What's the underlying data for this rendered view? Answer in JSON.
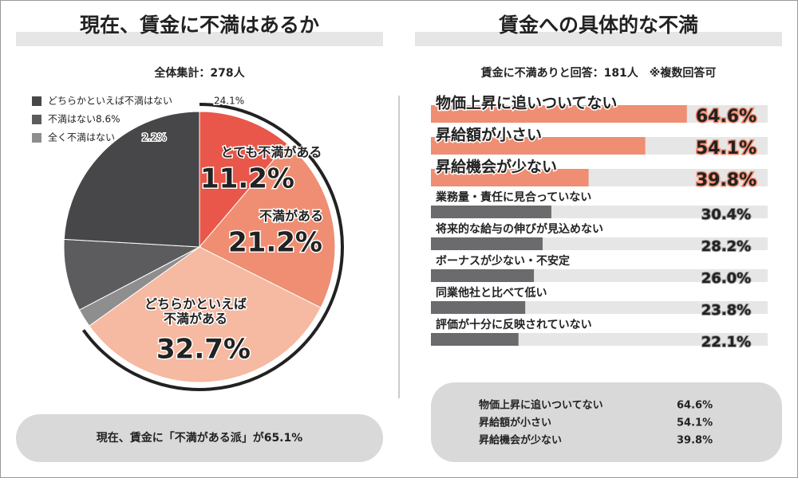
{
  "chart_data": [
    {
      "type": "pie",
      "title": "現在、賃金に不満はあるか",
      "subtitle": "全体集計：278人",
      "categories": [
        "とても不満がある",
        "不満がある",
        "どちらかといえば\n不満がある",
        "全く不満はない",
        "不満はない",
        "どちらかといえば不満はない"
      ],
      "values": [
        11.2,
        21.2,
        32.7,
        2.2,
        8.6,
        24.1
      ],
      "value_labels": [
        "11.2%",
        "21.2%",
        "32.7%",
        "2.2%",
        "8.6%",
        "24.1%"
      ],
      "colors": [
        "#e8574a",
        "#ef8e72",
        "#f6b9a1",
        "#8e8e8e",
        "#5c5c5e",
        "#474749"
      ],
      "annotation": "現在、賃金に「不満がある派」が65.1%"
    },
    {
      "type": "hbar",
      "title": "賃金への具体的な不満",
      "subtitle": "賃金に不満ありと回答：181人　※複数回答可",
      "categories": [
        "物価上昇に追いついてない",
        "昇給額が小さい",
        "昇給機会が少ない",
        "業務量・責任に見合っていない",
        "将来的な給与の伸びが見込めない",
        "ボーナスが少ない・不安定",
        "同業他社と比べて低い",
        "評価が十分に反映されていない"
      ],
      "values": [
        64.6,
        54.1,
        39.8,
        30.4,
        28.2,
        26.0,
        23.8,
        22.1
      ],
      "value_labels": [
        "64.6%",
        "54.1%",
        "39.8%",
        "30.4%",
        "28.2%",
        "26.0%",
        "23.8%",
        "22.1%"
      ],
      "colors": [
        "#ef8e72",
        "#ef8e72",
        "#ef8e72",
        "#6b6b6d",
        "#6b6b6d",
        "#6b6b6d",
        "#6b6b6d",
        "#6b6b6d"
      ],
      "xlim": [
        0,
        85
      ]
    }
  ]
}
